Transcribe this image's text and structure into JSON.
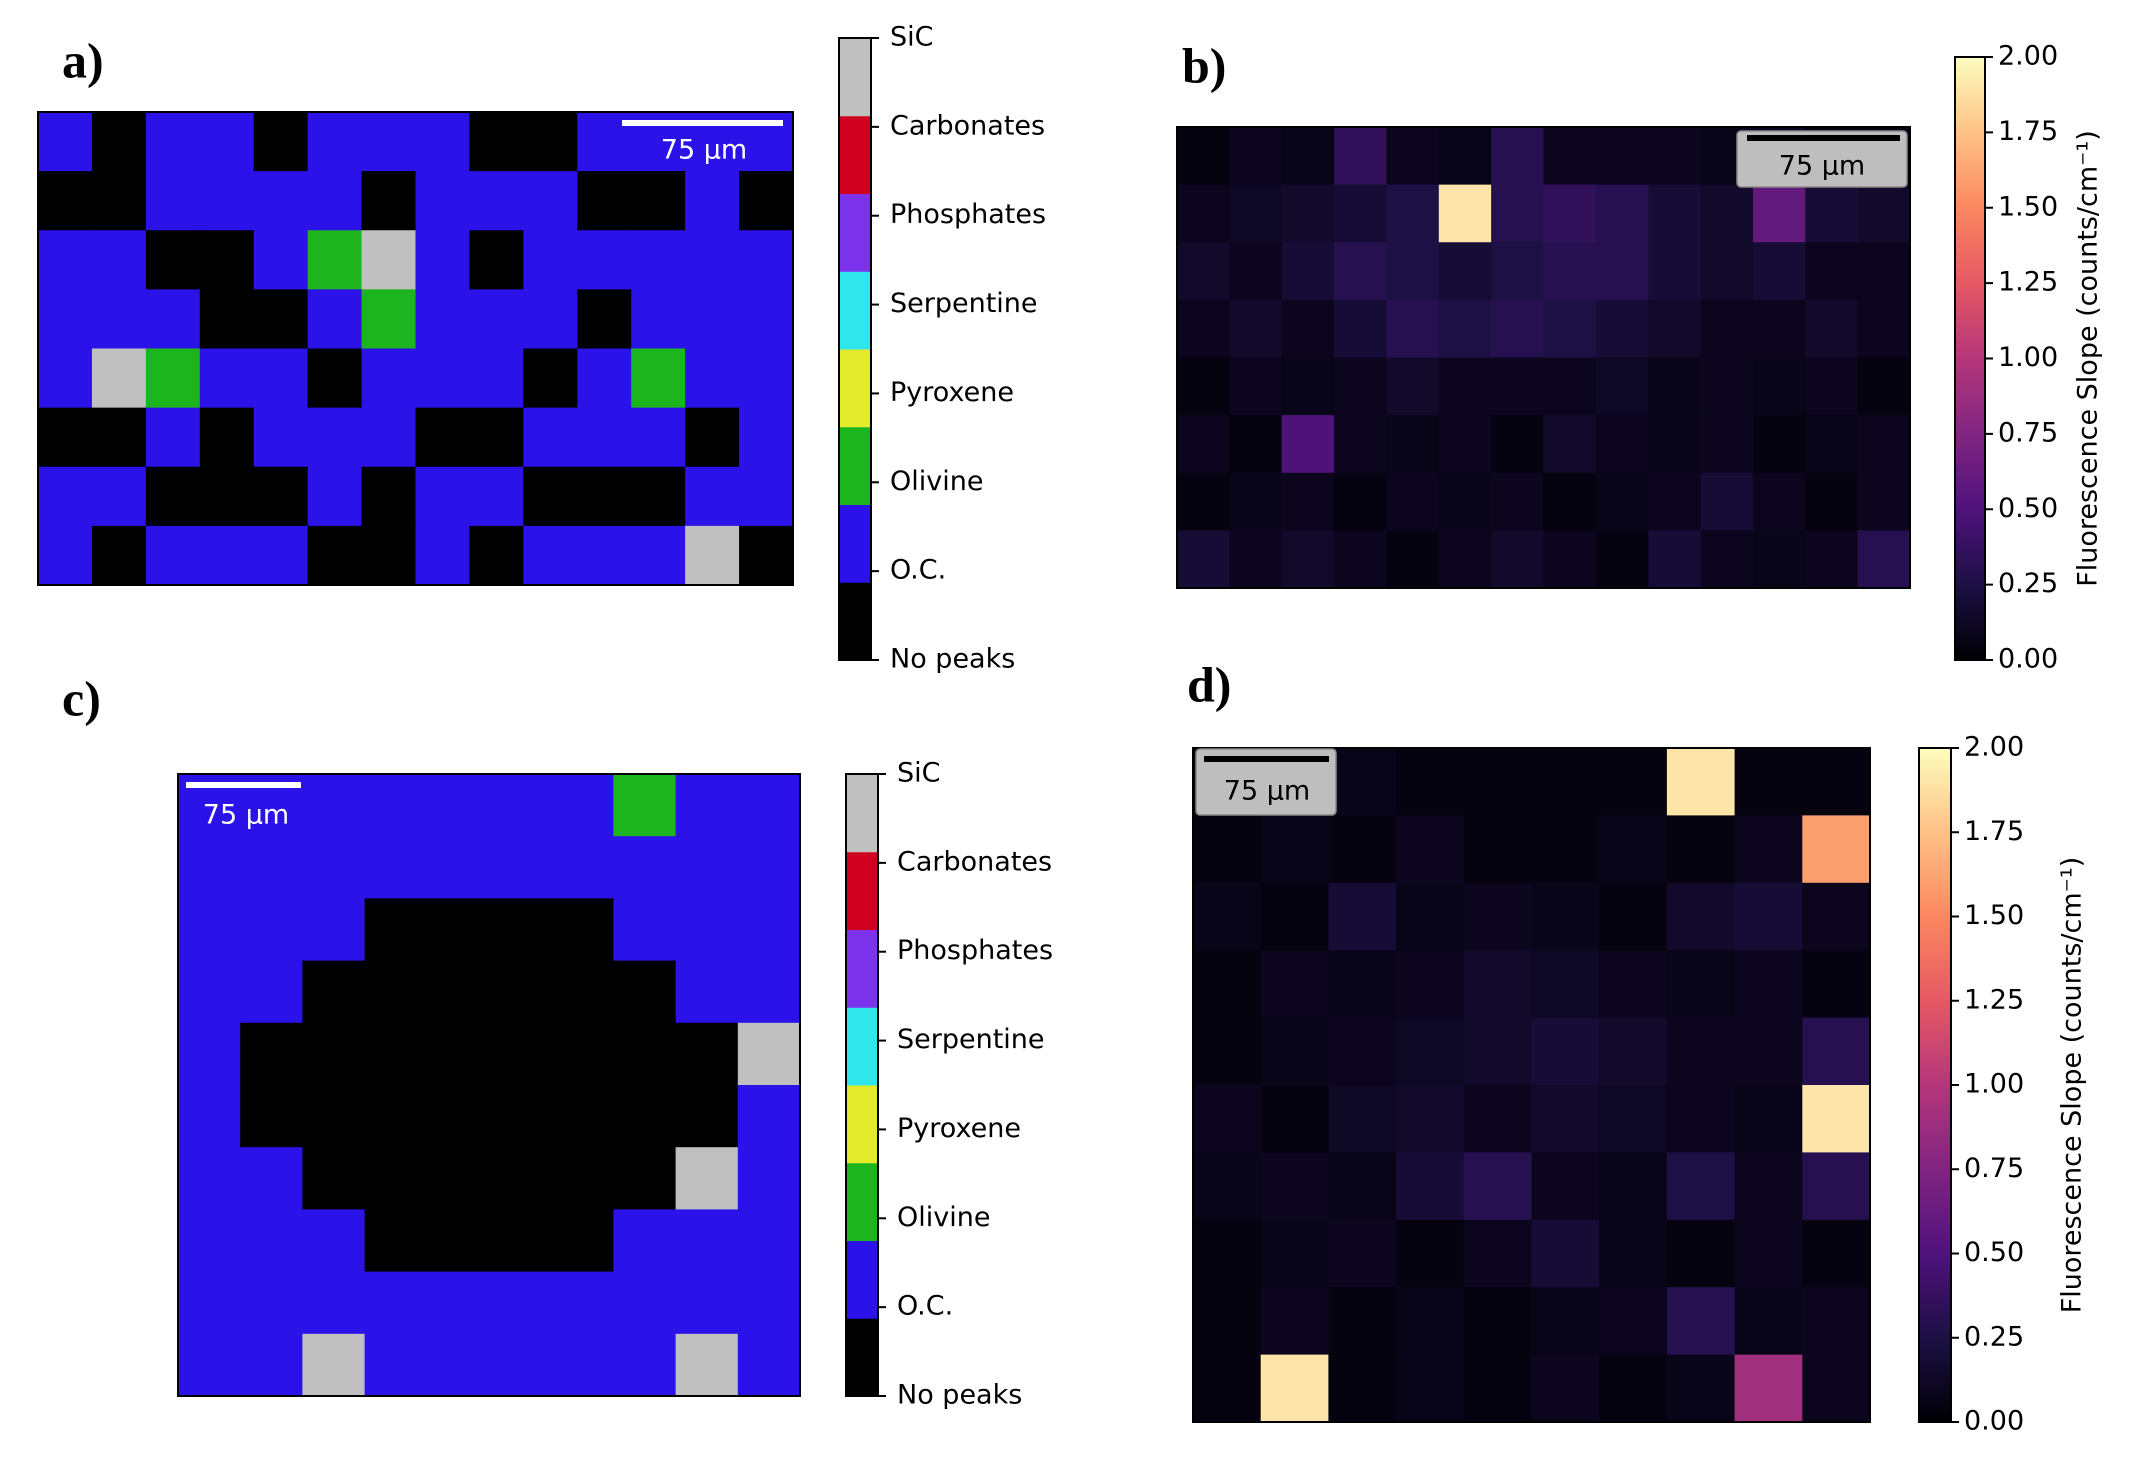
{
  "chart_data": [
    {
      "type": "category-map",
      "title": "a)",
      "scale_bar": "75 µm",
      "categories": [
        "No peaks",
        "O.C.",
        "Olivine",
        "Pyroxene",
        "Serpentine",
        "Phosphates",
        "Carbonates",
        "SiC"
      ],
      "colors": [
        "#000000",
        "#2a12e8",
        "#1db51d",
        "#e3ec2c",
        "#2ee6ec",
        "#7b33ec",
        "#d00020",
        "#c0c0c0"
      ],
      "values": [
        [
          1,
          0,
          1,
          1,
          0,
          1,
          1,
          1,
          0,
          0,
          1,
          1,
          1,
          1
        ],
        [
          0,
          0,
          1,
          1,
          1,
          1,
          0,
          1,
          1,
          1,
          0,
          0,
          1,
          0
        ],
        [
          1,
          1,
          0,
          0,
          1,
          2,
          7,
          1,
          0,
          1,
          1,
          1,
          1,
          1
        ],
        [
          1,
          1,
          1,
          0,
          0,
          1,
          2,
          1,
          1,
          1,
          0,
          1,
          1,
          1
        ],
        [
          1,
          7,
          2,
          1,
          1,
          0,
          1,
          1,
          1,
          0,
          1,
          2,
          1,
          1
        ],
        [
          0,
          0,
          1,
          0,
          1,
          1,
          1,
          0,
          0,
          1,
          1,
          1,
          0,
          1
        ],
        [
          1,
          1,
          0,
          0,
          0,
          1,
          0,
          1,
          1,
          0,
          0,
          0,
          1,
          1
        ],
        [
          1,
          0,
          1,
          1,
          1,
          0,
          0,
          1,
          0,
          1,
          1,
          1,
          7,
          0
        ]
      ]
    },
    {
      "type": "heatmap",
      "title": "b)",
      "scale_bar": "75 µm",
      "colorbar_label": "Fluorescence Slope (counts/cm⁻¹)",
      "colormap": [
        "#000004",
        "#1c1044",
        "#4f127b",
        "#812581",
        "#b5367a",
        "#e55964",
        "#fb8761",
        "#fec287",
        "#fcfdbf"
      ],
      "zlim": [
        0,
        2
      ],
      "zticks": [
        {
          "value": 0,
          "label": "0.00"
        },
        {
          "value": 0.25,
          "label": "0.25"
        },
        {
          "value": 0.5,
          "label": "0.50"
        },
        {
          "value": 0.75,
          "label": "0.75"
        },
        {
          "value": 1,
          "label": "1.00"
        },
        {
          "value": 1.25,
          "label": "1.25"
        },
        {
          "value": 1.5,
          "label": "1.50"
        },
        {
          "value": 1.75,
          "label": "1.75"
        },
        {
          "value": 2,
          "label": "2.00"
        }
      ],
      "values": [
        [
          0.05,
          0.1,
          0.08,
          0.35,
          0.1,
          0.08,
          0.3,
          0.1,
          0.1,
          0.1,
          0.08,
          0.1,
          0.05,
          0.05
        ],
        [
          0.1,
          0.12,
          0.15,
          0.2,
          0.25,
          1.9,
          0.3,
          0.35,
          0.3,
          0.2,
          0.15,
          0.6,
          0.2,
          0.15
        ],
        [
          0.15,
          0.1,
          0.2,
          0.3,
          0.25,
          0.2,
          0.25,
          0.3,
          0.3,
          0.2,
          0.15,
          0.2,
          0.1,
          0.1
        ],
        [
          0.1,
          0.15,
          0.1,
          0.2,
          0.3,
          0.25,
          0.3,
          0.25,
          0.2,
          0.15,
          0.1,
          0.1,
          0.15,
          0.1
        ],
        [
          0.05,
          0.1,
          0.08,
          0.1,
          0.15,
          0.1,
          0.1,
          0.1,
          0.12,
          0.08,
          0.1,
          0.08,
          0.1,
          0.05
        ],
        [
          0.1,
          0.05,
          0.5,
          0.1,
          0.08,
          0.1,
          0.05,
          0.15,
          0.1,
          0.08,
          0.1,
          0.05,
          0.08,
          0.1
        ],
        [
          0.05,
          0.08,
          0.1,
          0.05,
          0.1,
          0.08,
          0.1,
          0.05,
          0.08,
          0.1,
          0.2,
          0.1,
          0.05,
          0.1
        ],
        [
          0.2,
          0.1,
          0.15,
          0.1,
          0.05,
          0.1,
          0.15,
          0.1,
          0.05,
          0.2,
          0.1,
          0.08,
          0.1,
          0.3
        ]
      ]
    },
    {
      "type": "category-map",
      "title": "c)",
      "scale_bar": "75 µm",
      "categories": [
        "No peaks",
        "O.C.",
        "Olivine",
        "Pyroxene",
        "Serpentine",
        "Phosphates",
        "Carbonates",
        "SiC"
      ],
      "colors": [
        "#000000",
        "#2a12e8",
        "#1db51d",
        "#e3ec2c",
        "#2ee6ec",
        "#7b33ec",
        "#d00020",
        "#c0c0c0"
      ],
      "values": [
        [
          1,
          1,
          1,
          1,
          1,
          1,
          1,
          2,
          1,
          1
        ],
        [
          1,
          1,
          1,
          1,
          1,
          1,
          1,
          1,
          1,
          1
        ],
        [
          1,
          1,
          1,
          0,
          0,
          0,
          0,
          1,
          1,
          1
        ],
        [
          1,
          1,
          0,
          0,
          0,
          0,
          0,
          0,
          1,
          1
        ],
        [
          1,
          0,
          0,
          0,
          0,
          0,
          0,
          0,
          0,
          7
        ],
        [
          1,
          0,
          0,
          0,
          0,
          0,
          0,
          0,
          0,
          1
        ],
        [
          1,
          1,
          0,
          0,
          0,
          0,
          0,
          0,
          7,
          1
        ],
        [
          1,
          1,
          1,
          0,
          0,
          0,
          0,
          1,
          1,
          1
        ],
        [
          1,
          1,
          1,
          1,
          1,
          1,
          1,
          1,
          1,
          1
        ],
        [
          1,
          1,
          7,
          1,
          1,
          1,
          1,
          1,
          7,
          1
        ]
      ]
    },
    {
      "type": "heatmap",
      "title": "d)",
      "scale_bar": "75 µm",
      "colorbar_label": "Fluorescence Slope (counts/cm⁻¹)",
      "colormap": [
        "#000004",
        "#1c1044",
        "#4f127b",
        "#812581",
        "#b5367a",
        "#e55964",
        "#fb8761",
        "#fec287",
        "#fcfdbf"
      ],
      "zlim": [
        0,
        2
      ],
      "zticks": [
        {
          "value": 0,
          "label": "0.00"
        },
        {
          "value": 0.25,
          "label": "0.25"
        },
        {
          "value": 0.5,
          "label": "0.50"
        },
        {
          "value": 0.75,
          "label": "0.75"
        },
        {
          "value": 1,
          "label": "1.00"
        },
        {
          "value": 1.25,
          "label": "1.25"
        },
        {
          "value": 1.5,
          "label": "1.50"
        },
        {
          "value": 1.75,
          "label": "1.75"
        },
        {
          "value": 2,
          "label": "2.00"
        }
      ],
      "values": [
        [
          0.05,
          0.05,
          0.08,
          0.05,
          0.05,
          0.05,
          0.05,
          1.9,
          0.05,
          0.05
        ],
        [
          0.05,
          0.08,
          0.05,
          0.1,
          0.05,
          0.05,
          0.08,
          0.05,
          0.1,
          1.6
        ],
        [
          0.08,
          0.05,
          0.2,
          0.08,
          0.1,
          0.08,
          0.05,
          0.15,
          0.2,
          0.1
        ],
        [
          0.05,
          0.1,
          0.08,
          0.1,
          0.15,
          0.12,
          0.1,
          0.08,
          0.1,
          0.05
        ],
        [
          0.05,
          0.08,
          0.1,
          0.12,
          0.15,
          0.2,
          0.15,
          0.1,
          0.1,
          0.3
        ],
        [
          0.1,
          0.05,
          0.12,
          0.15,
          0.1,
          0.15,
          0.12,
          0.1,
          0.08,
          1.9
        ],
        [
          0.08,
          0.1,
          0.08,
          0.2,
          0.3,
          0.1,
          0.08,
          0.25,
          0.1,
          0.3
        ],
        [
          0.05,
          0.08,
          0.1,
          0.05,
          0.1,
          0.2,
          0.08,
          0.05,
          0.1,
          0.05
        ],
        [
          0.05,
          0.1,
          0.05,
          0.08,
          0.05,
          0.08,
          0.1,
          0.3,
          0.08,
          0.1
        ],
        [
          0.05,
          1.9,
          0.05,
          0.08,
          0.05,
          0.1,
          0.05,
          0.08,
          0.9,
          0.1
        ]
      ]
    }
  ]
}
